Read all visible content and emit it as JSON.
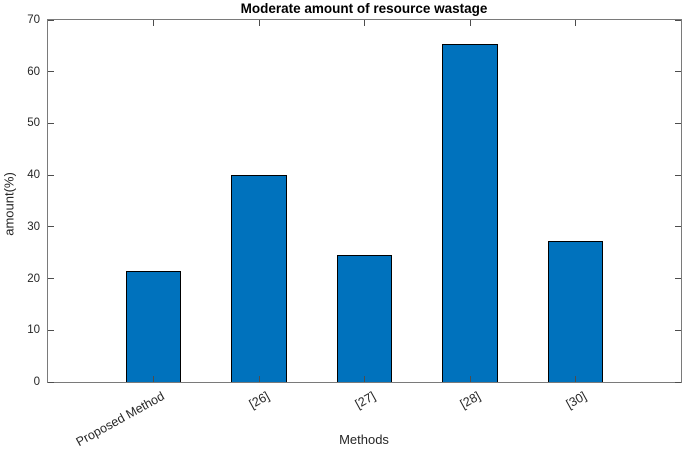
{
  "chart_data": {
    "type": "bar",
    "title": "Moderate amount of resource wastage",
    "xlabel": "Methods",
    "ylabel": "amount(%)",
    "categories": [
      "Proposed Method",
      "[26]",
      "[27]",
      "[28]",
      "[30]"
    ],
    "values": [
      21.4,
      40,
      24.5,
      65.4,
      27.2
    ],
    "ylim": [
      0,
      70
    ],
    "yticks": [
      0,
      10,
      20,
      30,
      40,
      50,
      60,
      70
    ],
    "xlim": [
      0,
      6
    ],
    "x_positions": [
      1,
      2,
      3,
      4,
      5
    ],
    "bar_width_fraction": 0.53,
    "x_tick_label_rotation_deg": 29,
    "grid": false,
    "legend": null,
    "box": true,
    "tick_direction": "in",
    "colors": {
      "bar_fill": "#0072bd",
      "bar_edge": "#000000",
      "axis_box": "#7a7a7a",
      "tick_mark": "#4d4d4d",
      "tick_text": "#262626",
      "title_text": "#000000"
    }
  }
}
